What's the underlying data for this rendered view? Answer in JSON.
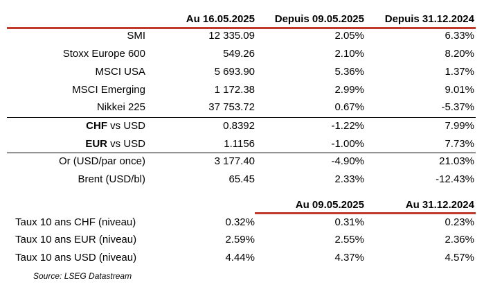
{
  "colors": {
    "accent_line": "#c0392b"
  },
  "top_table": {
    "headers": [
      "Au 16.05.2025",
      "Depuis 09.05.2025",
      "Depuis 31.12.2024"
    ],
    "rows": [
      {
        "label": "SMI",
        "v1": "12 335.09",
        "v2": "2.05%",
        "v3": "6.33%"
      },
      {
        "label": "Stoxx Europe 600",
        "v1": "549.26",
        "v2": "2.10%",
        "v3": "8.20%"
      },
      {
        "label": "MSCI USA",
        "v1": "5 693.90",
        "v2": "5.36%",
        "v3": "1.37%"
      },
      {
        "label": "MSCI Emerging",
        "v1": "1 172.38",
        "v2": "2.99%",
        "v3": "9.01%"
      },
      {
        "label": "Nikkei 225",
        "v1": "37 753.72",
        "v2": "0.67%",
        "v3": "-5.37%"
      },
      {
        "label_bold": "CHF",
        "label_rest": " vs USD",
        "v1": "0.8392",
        "v2": "-1.22%",
        "v3": "7.99%"
      },
      {
        "label_bold": "EUR",
        "label_rest": " vs USD",
        "v1": "1.1156",
        "v2": "-1.00%",
        "v3": "7.73%"
      },
      {
        "label": "Or (USD/par once)",
        "v1": "3 177.40",
        "v2": "-4.90%",
        "v3": "21.03%"
      },
      {
        "label": "Brent (USD/bl)",
        "v1": "65.45",
        "v2": "2.33%",
        "v3": "-12.43%"
      }
    ]
  },
  "bottom_table": {
    "headers": [
      "Au 09.05.2025",
      "Au 31.12.2024"
    ],
    "rows": [
      {
        "label": "Taux 10 ans CHF (niveau)",
        "v1": "0.32%",
        "v2": "0.31%",
        "v3": "0.23%"
      },
      {
        "label": "Taux 10 ans EUR (niveau)",
        "v1": "2.59%",
        "v2": "2.55%",
        "v3": "2.36%"
      },
      {
        "label": "Taux 10 ans USD (niveau)",
        "v1": "4.44%",
        "v2": "4.37%",
        "v3": "4.57%"
      }
    ]
  },
  "source": "Source: LSEG Datastream"
}
